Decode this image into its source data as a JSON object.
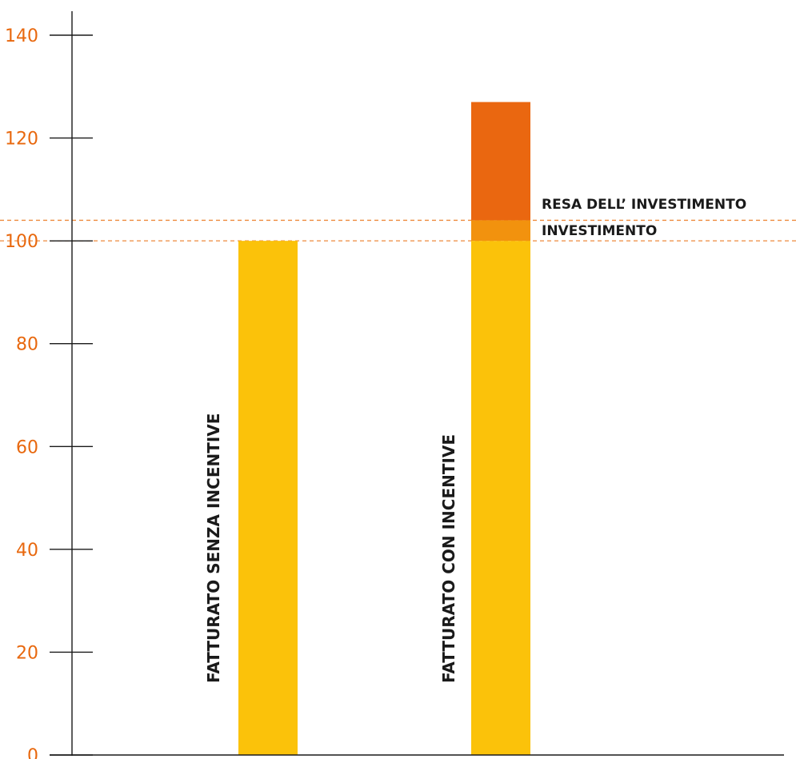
{
  "chart_data": {
    "type": "bar",
    "stacked": true,
    "categories": [
      "FATTURATO SENZA INCENTIVE",
      "FATTURATO CON INCENTIVE"
    ],
    "series": [
      {
        "values": [
          100,
          100
        ]
      },
      {
        "values": [
          0,
          4
        ]
      },
      {
        "values": [
          0,
          23
        ]
      }
    ],
    "y_ticks": [
      "0",
      "20",
      "40",
      "60",
      "80",
      "100",
      "120",
      "140"
    ],
    "ylim": [
      0,
      140
    ],
    "reference_lines": [
      {
        "label": "INVESTIMENTO",
        "value": 100
      },
      {
        "label": "RESA DELL’ INVESTIMENTO",
        "value": 104
      }
    ],
    "grid": false,
    "colors": {
      "base": "#FBC20A",
      "investimento": "#F2920E",
      "resa": "#EA6710",
      "axis": "#1a1a1a",
      "tick_labels": "#E8680E",
      "reference_line": "#EE8A3C"
    }
  }
}
